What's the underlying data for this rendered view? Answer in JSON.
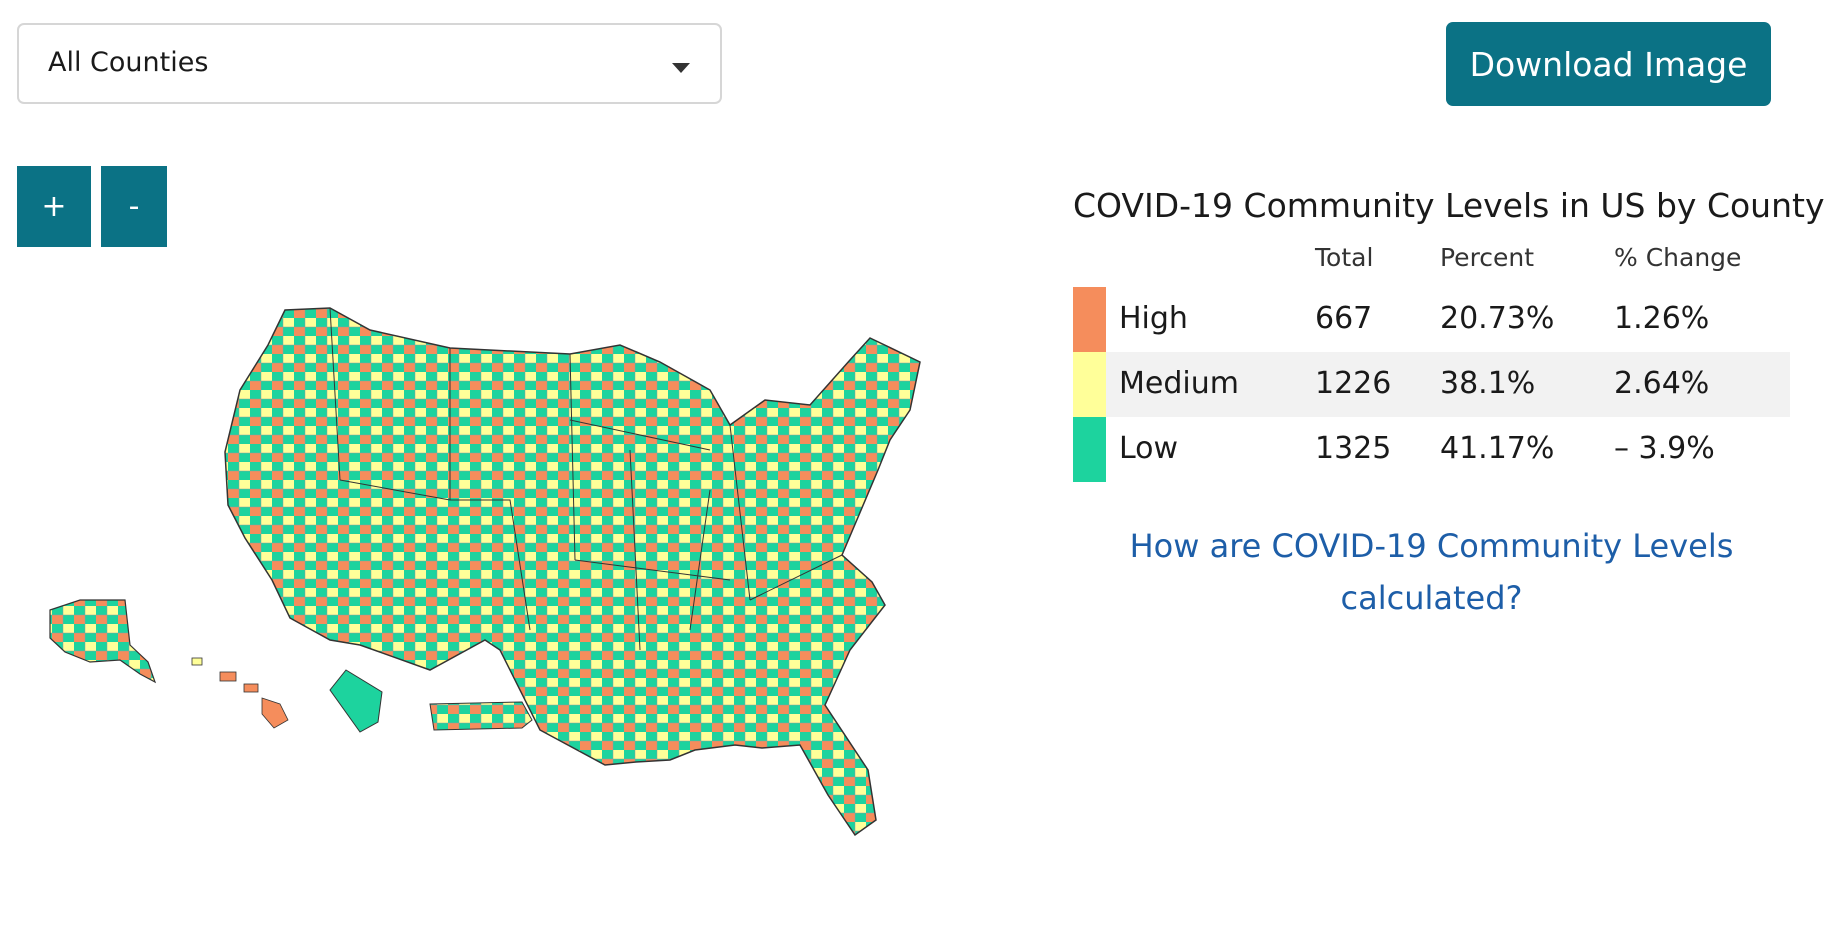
{
  "filter": {
    "selected": "All Counties"
  },
  "toolbar": {
    "download_label": "Download Image",
    "zoom_in_label": "+",
    "zoom_out_label": "-"
  },
  "summary": {
    "title": "COVID-19 Community Levels in US by County",
    "columns": {
      "total": "Total",
      "percent": "Percent",
      "change": "% Change"
    },
    "rows": [
      {
        "label": "High",
        "total": "667",
        "percent": "20.73%",
        "change": "1.26%",
        "color": "#f58d5c"
      },
      {
        "label": "Medium",
        "total": "1226",
        "percent": "38.1%",
        "change": "2.64%",
        "color": "#ffff99"
      },
      {
        "label": "Low",
        "total": "1325",
        "percent": "41.17%",
        "change": "– 3.9%",
        "color": "#1dd39e"
      }
    ],
    "info_link": "How are COVID-19 Community Levels calculated?"
  },
  "map": {
    "level_colors": {
      "high": "#f58d5c",
      "medium": "#ffff99",
      "low": "#1dd39e"
    },
    "border_color": "#333333"
  }
}
